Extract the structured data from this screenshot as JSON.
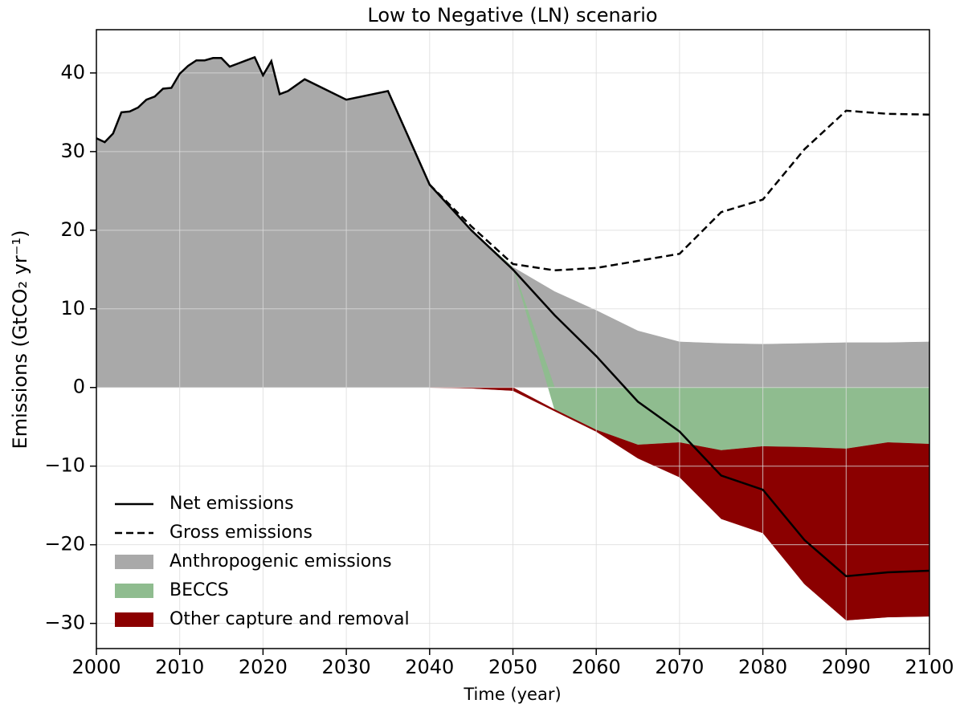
{
  "chart_data": {
    "type": "line",
    "title": "Low to Negative (LN) scenario",
    "x_label": "Time (year)",
    "y_label": "Emissions (GtCO₂ yr⁻¹)",
    "x": [
      2000,
      2001,
      2002,
      2003,
      2004,
      2005,
      2006,
      2007,
      2008,
      2009,
      2010,
      2011,
      2012,
      2013,
      2014,
      2015,
      2016,
      2017,
      2018,
      2019,
      2020,
      2021,
      2022,
      2023,
      2025,
      2030,
      2035,
      2040,
      2045,
      2050,
      2055,
      2060,
      2065,
      2070,
      2075,
      2080,
      2085,
      2090,
      2095,
      2100
    ],
    "series": [
      {
        "name": "Anthropogenic emissions",
        "kind": "area",
        "color": "#a9a9a9",
        "values": [
          31.7,
          31.2,
          32.3,
          35.0,
          35.1,
          35.6,
          36.6,
          37.0,
          38.0,
          38.1,
          39.9,
          40.9,
          41.6,
          41.6,
          41.9,
          41.9,
          40.8,
          41.2,
          41.6,
          42.0,
          39.7,
          41.5,
          37.3,
          37.7,
          39.2,
          36.6,
          37.7,
          25.8,
          20.0,
          15.3,
          12.2,
          9.8,
          7.2,
          5.8,
          5.6,
          5.5,
          5.6,
          5.7,
          5.7,
          5.8
        ]
      },
      {
        "name": "BECCS",
        "kind": "area",
        "color": "#8fbc8f",
        "values": [
          null,
          null,
          null,
          null,
          null,
          null,
          null,
          null,
          null,
          null,
          null,
          null,
          null,
          null,
          null,
          null,
          null,
          null,
          null,
          null,
          null,
          null,
          null,
          null,
          null,
          null,
          null,
          0,
          0,
          0,
          -2.8,
          -5.4,
          -7.3,
          -7.0,
          -8.0,
          -7.5,
          -7.6,
          -7.8,
          -7.0,
          -7.2
        ]
      },
      {
        "name": "Other capture and removal",
        "kind": "area",
        "color": "#8b0000",
        "values": [
          null,
          null,
          null,
          null,
          null,
          null,
          null,
          null,
          null,
          null,
          null,
          null,
          null,
          null,
          null,
          null,
          null,
          null,
          null,
          null,
          null,
          null,
          null,
          null,
          null,
          null,
          null,
          0,
          -0.1,
          -0.4,
          -0.2,
          -0.2,
          -1.7,
          -4.4,
          -8.7,
          -11.0,
          -17.4,
          -21.8,
          -22.2,
          -21.9
        ]
      },
      {
        "name": "Gross emissions",
        "kind": "line",
        "dashed": true,
        "color": "#000000",
        "values": [
          null,
          null,
          null,
          null,
          null,
          null,
          null,
          null,
          null,
          null,
          null,
          null,
          null,
          null,
          null,
          null,
          null,
          null,
          null,
          null,
          null,
          null,
          null,
          null,
          null,
          null,
          null,
          25.8,
          20.5,
          15.7,
          14.9,
          15.2,
          16.1,
          17.0,
          22.3,
          23.9,
          30.3,
          35.2,
          34.8,
          34.7
        ]
      },
      {
        "name": "Net emissions",
        "kind": "line",
        "dashed": false,
        "color": "#000000",
        "values": [
          31.7,
          31.2,
          32.3,
          35.0,
          35.1,
          35.6,
          36.6,
          37.0,
          38.0,
          38.1,
          39.9,
          40.9,
          41.6,
          41.6,
          41.9,
          41.9,
          40.8,
          41.2,
          41.6,
          42.0,
          39.7,
          41.5,
          37.3,
          37.7,
          39.2,
          36.6,
          37.7,
          25.8,
          20.0,
          15.0,
          9.2,
          4.0,
          -1.8,
          -5.6,
          -11.2,
          -13.0,
          -19.4,
          -24.0,
          -23.5,
          -23.3
        ]
      }
    ],
    "legend_order": [
      4,
      3,
      0,
      1,
      2
    ],
    "legend": "lower left",
    "grid": true,
    "xlim": [
      2000,
      2100
    ],
    "xticks": [
      2000,
      2010,
      2020,
      2030,
      2040,
      2050,
      2060,
      2070,
      2080,
      2090,
      2100
    ],
    "ylim": [
      -33.2,
      45.5
    ],
    "yticks": [
      {
        "value": -30,
        "label": "−30"
      },
      {
        "value": -20,
        "label": "−20"
      },
      {
        "value": -10,
        "label": "−10"
      },
      0,
      10,
      20,
      30,
      40
    ]
  }
}
